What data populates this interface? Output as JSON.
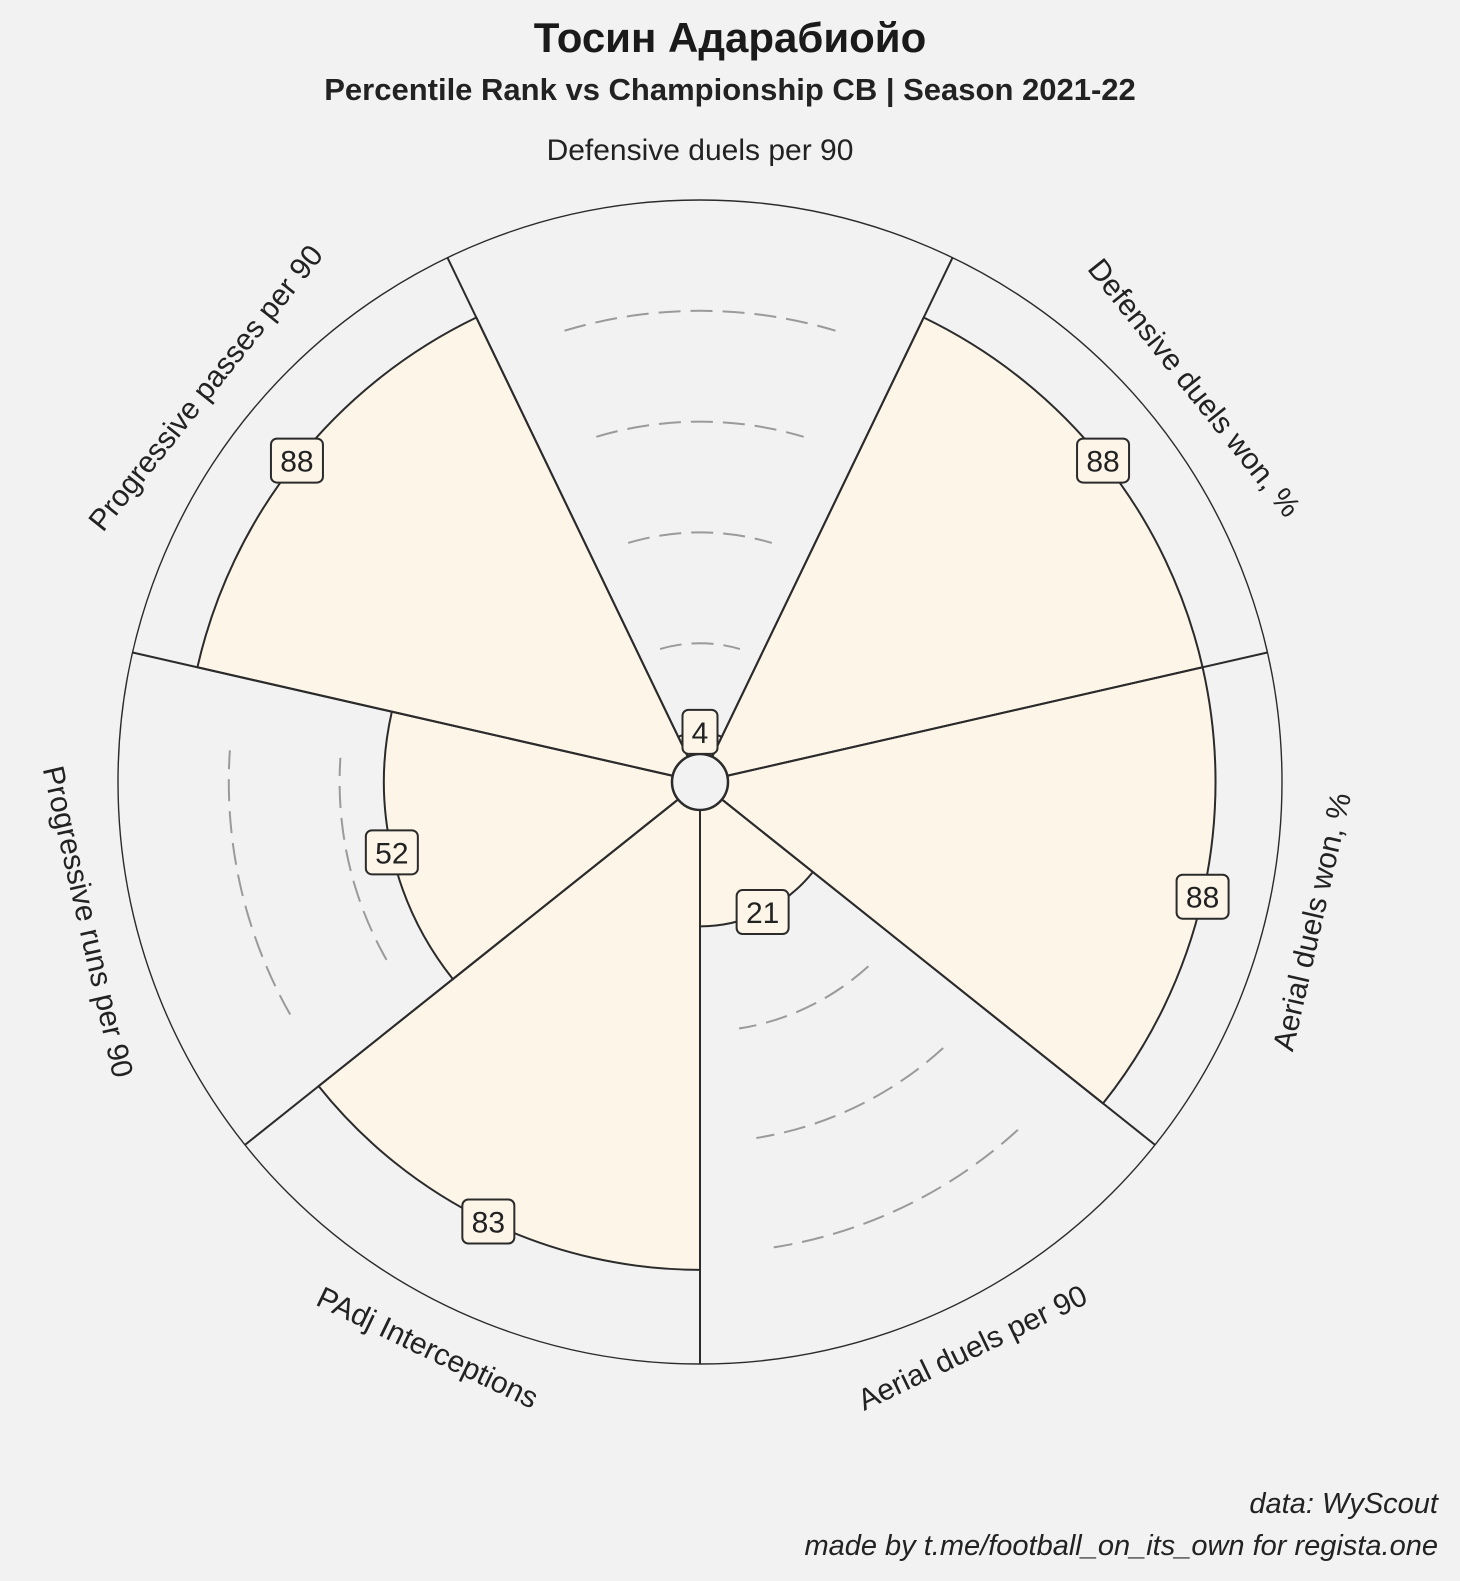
{
  "header": {
    "title": "Тосин Адарабиойо",
    "subtitle": "Percentile Rank vs Championship CB | Season 2021-22"
  },
  "footer": {
    "source": "data: WyScout",
    "credit": "made by t.me/football_on_its_own for regista.one"
  },
  "colors": {
    "background": "#f2f2f2",
    "slice_fill": "#fcf5e8",
    "edge": "#2b2b2b",
    "grid": "#9a9a9a"
  },
  "chart_data": {
    "type": "radar",
    "subtype": "pizza",
    "title": "Тосин Адарабиойо",
    "subtitle": "Percentile Rank vs Championship CB | Season 2021-22",
    "range": [
      0,
      100
    ],
    "gridlines": [
      20,
      40,
      60,
      80
    ],
    "grid": true,
    "categories": [
      "Defensive duels per 90",
      "Defensive duels won, %",
      "Aerial duels won, %",
      "Aerial duels per 90",
      "PAdj Interceptions",
      "Progressive runs per 90",
      "Progressive passes per 90"
    ],
    "values": [
      4,
      88,
      88,
      21,
      83,
      52,
      88
    ]
  }
}
